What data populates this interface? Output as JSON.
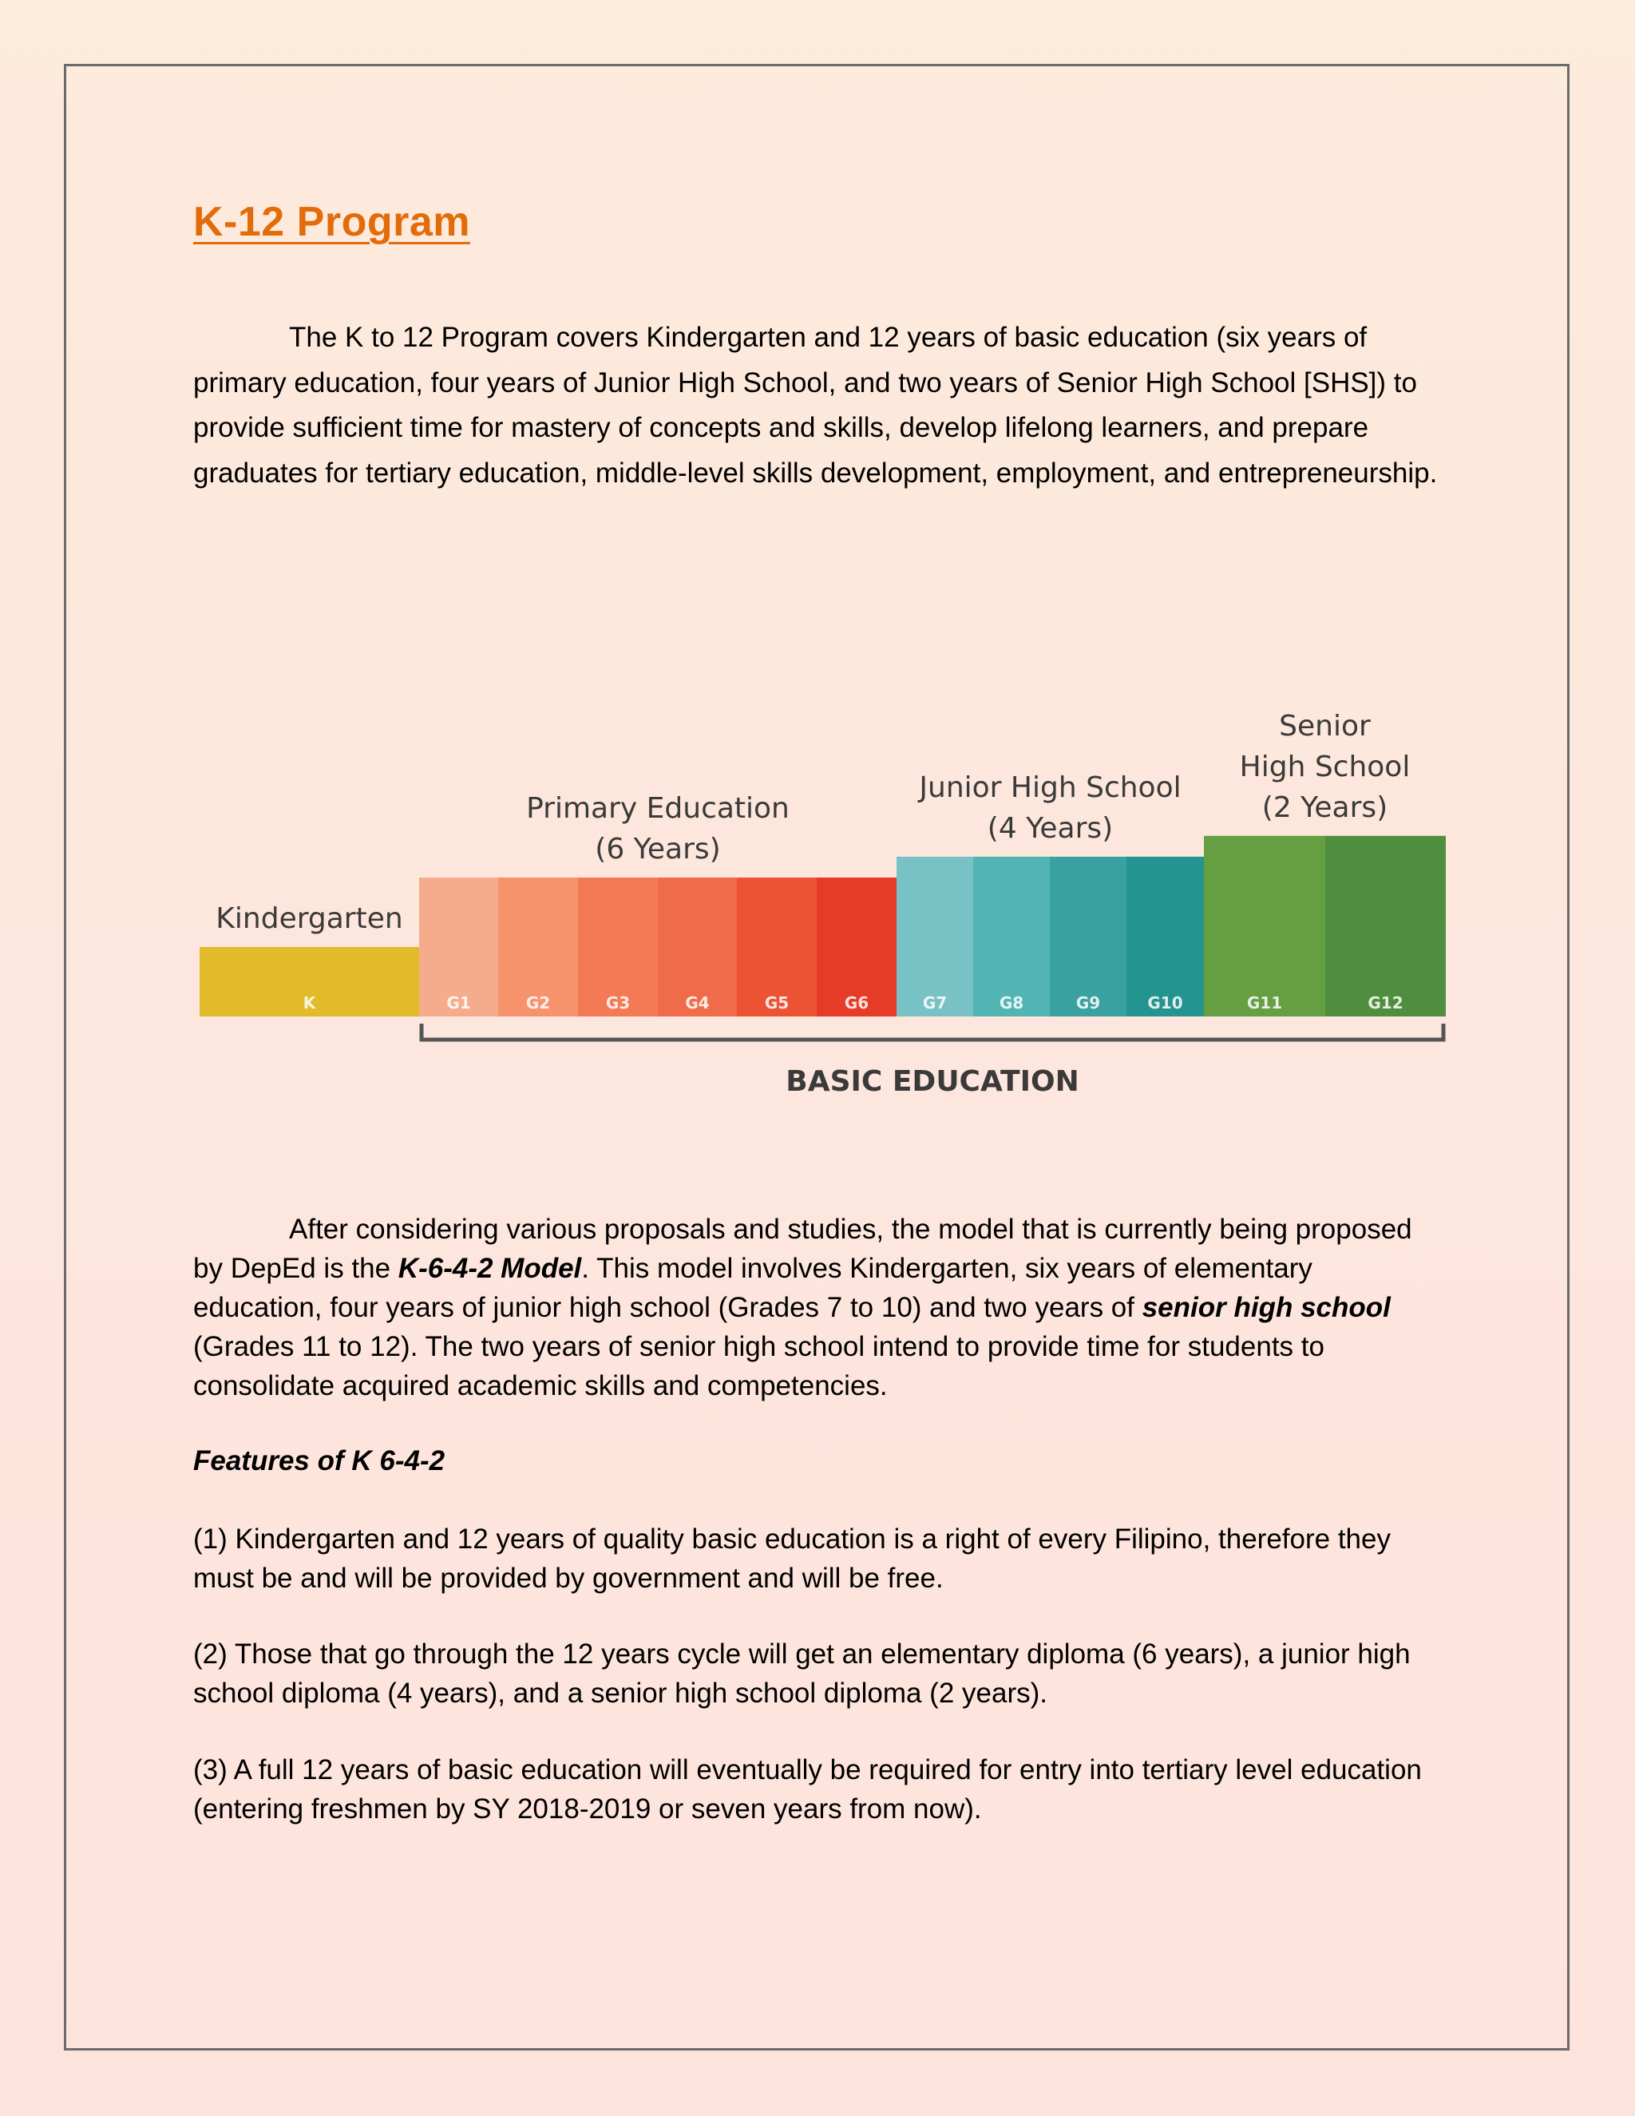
{
  "document": {
    "title": "K-12 Program",
    "intro": "The K to 12 Program covers Kindergarten and 12 years of basic education (six years of primary education, four years of Junior High School, and two years of Senior High School [SHS]) to provide sufficient time for mastery of concepts and skills, develop lifelong learners, and prepare graduates for tertiary education, middle-level skills development, employment, and entrepreneurship.",
    "model_para": {
      "part1": "After considering various proposals and studies, the model that is currently being proposed by DepEd is the ",
      "model_name": "K-6-4-2 Model",
      "part2": ". This model involves Kindergarten, six years of elementary education, four years of junior high school (Grades 7 to 10) and two years of ",
      "shs": "senior high school",
      "part3": " (Grades 11 to 12). The two years of senior high school intend to provide time for students to consolidate acquired academic skills and competencies."
    },
    "features_heading": "Features of K 6-4-2",
    "features": [
      "(1) Kindergarten and 12 years of quality basic education is a right of every Filipino, therefore they must be and will be provided by government and will be free.",
      "(2) Those that go through the 12 years cycle will get an elementary diploma (6 years), a junior high school diploma (4 years), and a senior high school diploma (2 years).",
      "(3) A full 12 years of basic education will eventually be required for entry into tertiary level education (entering freshmen by SY 2018-2019 or seven years from now)."
    ]
  },
  "chart_data": {
    "type": "bar",
    "categories": [
      "K",
      "G1",
      "G2",
      "G3",
      "G4",
      "G5",
      "G6",
      "G7",
      "G8",
      "G9",
      "G10",
      "G11",
      "G12"
    ],
    "values": [
      1,
      2,
      2,
      2,
      2,
      2,
      2,
      2.3,
      2.3,
      2.3,
      2.3,
      2.6,
      2.6
    ],
    "colors": [
      "#e2bb2a",
      "#f5ac8d",
      "#f7936c",
      "#f37a55",
      "#f06b4a",
      "#ec5334",
      "#e63b26",
      "#78c2c6",
      "#52b5b4",
      "#39a19f",
      "#239490",
      "#669e42",
      "#4f8e3e"
    ],
    "groups": [
      {
        "label_lines": [
          "Kindergarten"
        ],
        "start": 0,
        "end": 0
      },
      {
        "label_lines": [
          "Primary Education",
          "(6 Years)"
        ],
        "start": 1,
        "end": 6
      },
      {
        "label_lines": [
          "Junior High School",
          "(4 Years)"
        ],
        "start": 7,
        "end": 10
      },
      {
        "label_lines": [
          "Senior",
          "High School",
          "(2 Years)"
        ],
        "start": 11,
        "end": 12
      }
    ],
    "bracket_label": "BASIC EDUCATION",
    "bracket_start": 1,
    "bracket_end": 12
  }
}
